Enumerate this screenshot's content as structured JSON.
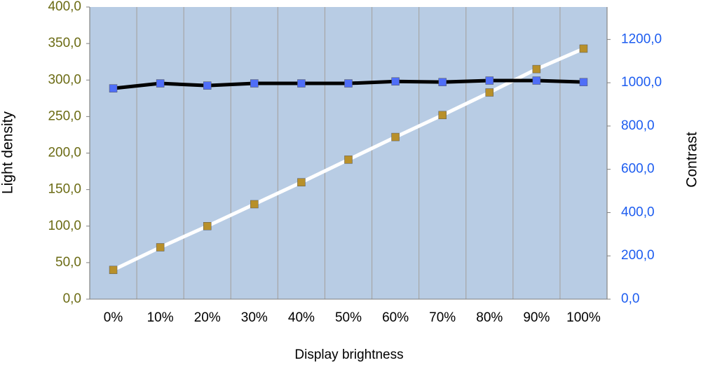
{
  "chart_data": {
    "type": "line",
    "x_label": "Display brightness",
    "y_label": "Light density",
    "y2_label": "Contrast",
    "categories": [
      "0%",
      "10%",
      "20%",
      "30%",
      "40%",
      "50%",
      "60%",
      "70%",
      "80%",
      "90%",
      "100%"
    ],
    "series": [
      {
        "color": "#b8902a",
        "line_color": "#ffffff",
        "values": [
          40,
          71,
          100,
          130,
          160,
          191,
          222,
          252,
          283,
          315,
          343
        ]
      },
      {
        "color": "#4f6ef7",
        "line_color": "#000000",
        "axis": "y2",
        "values": [
          974,
          997,
          987,
          997,
          997,
          997,
          1006,
          1003,
          1010,
          1010,
          1003
        ]
      }
    ],
    "ylim": [
      0,
      400
    ],
    "yticks": [
      {
        "value": 0,
        "label": "0,0"
      },
      {
        "value": 50,
        "label": "50,0"
      },
      {
        "value": 100,
        "label": "100,0"
      },
      {
        "value": 150,
        "label": "150,0"
      },
      {
        "value": 200,
        "label": "200,0"
      },
      {
        "value": 250,
        "label": "250,0"
      },
      {
        "value": 300,
        "label": "300,0"
      },
      {
        "value": 350,
        "label": "350,0"
      },
      {
        "value": 400,
        "label": "400,0"
      }
    ],
    "y2lim": [
      0,
      1350
    ],
    "y2ticks": [
      {
        "value": 0,
        "label": "0,0"
      },
      {
        "value": 200,
        "label": "200,0"
      },
      {
        "value": 400,
        "label": "400,0"
      },
      {
        "value": 600,
        "label": "600,0"
      },
      {
        "value": 800,
        "label": "800,0"
      },
      {
        "value": 1000,
        "label": "1000,0"
      },
      {
        "value": 1200,
        "label": "1200,0"
      }
    ],
    "ytick_color": "#6b6b14",
    "y2tick_color": "#1c5cf0",
    "plot_background": "#b8cce4",
    "grid": "x"
  }
}
